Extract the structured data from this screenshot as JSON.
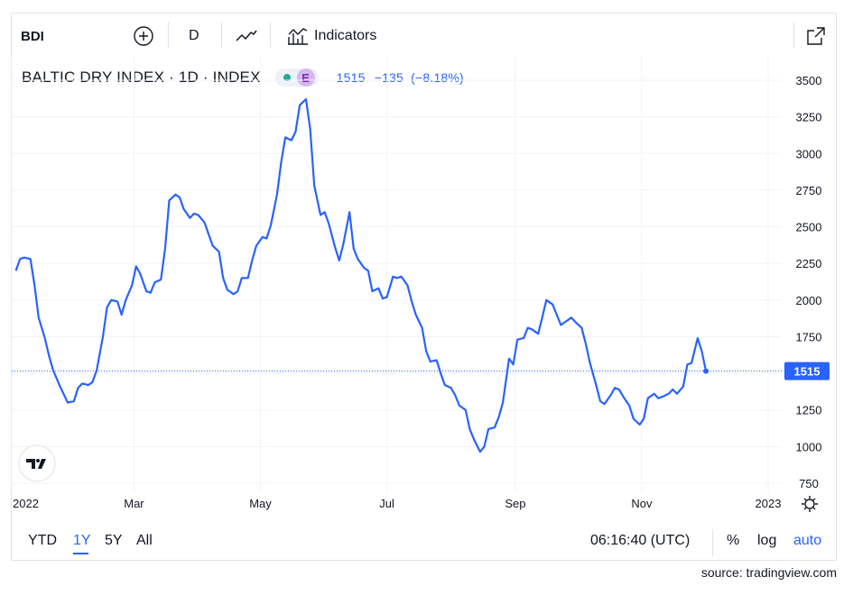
{
  "toolbar": {
    "symbol": "BDI",
    "add_icon": "plus-circle-icon",
    "interval": "D",
    "chart_style_icon": "line-style-icon",
    "indicators_icon": "indicators-icon",
    "indicators_label": "Indicators",
    "fullscreen_icon": "expand-icon"
  },
  "legend": {
    "title": "BALTIC DRY INDEX · 1D · INDEX",
    "status_dot_color": "#22ab94",
    "badge": "E",
    "last": "1515",
    "change": "−135",
    "change_pct": "(−8.18%)"
  },
  "price_label": "1515",
  "bottom_bar": {
    "ranges": [
      "YTD",
      "1Y",
      "5Y",
      "All"
    ],
    "active_range": "1Y",
    "clock": "06:16:40 (UTC)",
    "percent": "%",
    "log": "log",
    "auto": "auto"
  },
  "source": "source: tradingview.com",
  "logo": "TradingView",
  "colors": {
    "line": "#2962ff",
    "price_label_bg": "#2962ff",
    "active": "#2962ff"
  },
  "chart_data": {
    "type": "line",
    "title": "BALTIC DRY INDEX · 1D · INDEX",
    "x_tick_labels": [
      "2022",
      "Mar",
      "May",
      "Jul",
      "Sep",
      "Nov",
      "2023"
    ],
    "y_tick_labels": [
      "750",
      "1000",
      "1250",
      "1500",
      "1750",
      "2000",
      "2250",
      "2500",
      "2750",
      "3000",
      "3250",
      "3500"
    ],
    "ylim": [
      750,
      3550
    ],
    "grid": true,
    "last_value_line": 1515,
    "series": [
      {
        "values": [
          [
            "2022-01-03",
            2200
          ],
          [
            "2022-01-05",
            2280
          ],
          [
            "2022-01-07",
            2290
          ],
          [
            "2022-01-10",
            2280
          ],
          [
            "2022-01-12",
            2100
          ],
          [
            "2022-01-14",
            1880
          ],
          [
            "2022-01-17",
            1740
          ],
          [
            "2022-01-19",
            1620
          ],
          [
            "2022-01-21",
            1520
          ],
          [
            "2022-01-24",
            1420
          ],
          [
            "2022-01-26",
            1360
          ],
          [
            "2022-01-28",
            1300
          ],
          [
            "2022-01-31",
            1310
          ],
          [
            "2022-02-02",
            1400
          ],
          [
            "2022-02-04",
            1430
          ],
          [
            "2022-02-07",
            1420
          ],
          [
            "2022-02-09",
            1440
          ],
          [
            "2022-02-11",
            1520
          ],
          [
            "2022-02-14",
            1750
          ],
          [
            "2022-02-16",
            1950
          ],
          [
            "2022-02-18",
            2000
          ],
          [
            "2022-02-21",
            1990
          ],
          [
            "2022-02-23",
            1900
          ],
          [
            "2022-02-25",
            2000
          ],
          [
            "2022-02-28",
            2100
          ],
          [
            "2022-03-02",
            2230
          ],
          [
            "2022-03-04",
            2180
          ],
          [
            "2022-03-07",
            2060
          ],
          [
            "2022-03-09",
            2050
          ],
          [
            "2022-03-11",
            2120
          ],
          [
            "2022-03-14",
            2140
          ],
          [
            "2022-03-16",
            2350
          ],
          [
            "2022-03-18",
            2680
          ],
          [
            "2022-03-21",
            2720
          ],
          [
            "2022-03-23",
            2700
          ],
          [
            "2022-03-25",
            2620
          ],
          [
            "2022-03-28",
            2560
          ],
          [
            "2022-03-30",
            2590
          ],
          [
            "2022-04-01",
            2580
          ],
          [
            "2022-04-04",
            2530
          ],
          [
            "2022-04-06",
            2450
          ],
          [
            "2022-04-08",
            2370
          ],
          [
            "2022-04-11",
            2330
          ],
          [
            "2022-04-13",
            2150
          ],
          [
            "2022-04-15",
            2070
          ],
          [
            "2022-04-18",
            2040
          ],
          [
            "2022-04-20",
            2060
          ],
          [
            "2022-04-22",
            2150
          ],
          [
            "2022-04-25",
            2150
          ],
          [
            "2022-04-27",
            2270
          ],
          [
            "2022-04-29",
            2370
          ],
          [
            "2022-05-02",
            2430
          ],
          [
            "2022-05-04",
            2420
          ],
          [
            "2022-05-06",
            2510
          ],
          [
            "2022-05-09",
            2720
          ],
          [
            "2022-05-11",
            2940
          ],
          [
            "2022-05-13",
            3110
          ],
          [
            "2022-05-16",
            3090
          ],
          [
            "2022-05-18",
            3150
          ],
          [
            "2022-05-20",
            3330
          ],
          [
            "2022-05-23",
            3370
          ],
          [
            "2022-05-25",
            3170
          ],
          [
            "2022-05-27",
            2780
          ],
          [
            "2022-05-30",
            2580
          ],
          [
            "2022-06-01",
            2600
          ],
          [
            "2022-06-03",
            2520
          ],
          [
            "2022-06-06",
            2360
          ],
          [
            "2022-06-08",
            2270
          ],
          [
            "2022-06-10",
            2380
          ],
          [
            "2022-06-13",
            2600
          ],
          [
            "2022-06-15",
            2350
          ],
          [
            "2022-06-17",
            2280
          ],
          [
            "2022-06-20",
            2220
          ],
          [
            "2022-06-22",
            2200
          ],
          [
            "2022-06-24",
            2060
          ],
          [
            "2022-06-27",
            2080
          ],
          [
            "2022-06-29",
            2010
          ],
          [
            "2022-07-01",
            2020
          ],
          [
            "2022-07-04",
            2160
          ],
          [
            "2022-07-06",
            2150
          ],
          [
            "2022-07-08",
            2160
          ],
          [
            "2022-07-11",
            2100
          ],
          [
            "2022-07-13",
            1990
          ],
          [
            "2022-07-15",
            1900
          ],
          [
            "2022-07-18",
            1810
          ],
          [
            "2022-07-20",
            1650
          ],
          [
            "2022-07-22",
            1580
          ],
          [
            "2022-07-25",
            1590
          ],
          [
            "2022-07-27",
            1500
          ],
          [
            "2022-07-29",
            1420
          ],
          [
            "2022-08-01",
            1400
          ],
          [
            "2022-08-03",
            1350
          ],
          [
            "2022-08-05",
            1280
          ],
          [
            "2022-08-08",
            1250
          ],
          [
            "2022-08-10",
            1120
          ],
          [
            "2022-08-12",
            1050
          ],
          [
            "2022-08-15",
            965
          ],
          [
            "2022-08-17",
            1000
          ],
          [
            "2022-08-19",
            1120
          ],
          [
            "2022-08-22",
            1130
          ],
          [
            "2022-08-24",
            1200
          ],
          [
            "2022-08-26",
            1300
          ],
          [
            "2022-08-29",
            1600
          ],
          [
            "2022-08-31",
            1560
          ],
          [
            "2022-09-02",
            1730
          ],
          [
            "2022-09-05",
            1740
          ],
          [
            "2022-09-07",
            1810
          ],
          [
            "2022-09-09",
            1800
          ],
          [
            "2022-09-12",
            1770
          ],
          [
            "2022-09-14",
            1880
          ],
          [
            "2022-09-16",
            2000
          ],
          [
            "2022-09-19",
            1970
          ],
          [
            "2022-09-21",
            1900
          ],
          [
            "2022-09-23",
            1830
          ],
          [
            "2022-09-26",
            1860
          ],
          [
            "2022-09-28",
            1880
          ],
          [
            "2022-09-30",
            1850
          ],
          [
            "2022-10-03",
            1810
          ],
          [
            "2022-10-05",
            1700
          ],
          [
            "2022-10-07",
            1570
          ],
          [
            "2022-10-10",
            1420
          ],
          [
            "2022-10-12",
            1310
          ],
          [
            "2022-10-14",
            1290
          ],
          [
            "2022-10-17",
            1350
          ],
          [
            "2022-10-19",
            1400
          ],
          [
            "2022-10-21",
            1390
          ],
          [
            "2022-10-24",
            1320
          ],
          [
            "2022-10-26",
            1280
          ],
          [
            "2022-10-28",
            1190
          ],
          [
            "2022-10-31",
            1150
          ],
          [
            "2022-11-02",
            1190
          ],
          [
            "2022-11-04",
            1330
          ],
          [
            "2022-11-07",
            1360
          ],
          [
            "2022-11-09",
            1330
          ],
          [
            "2022-11-11",
            1340
          ],
          [
            "2022-11-14",
            1360
          ],
          [
            "2022-11-16",
            1390
          ],
          [
            "2022-11-18",
            1360
          ],
          [
            "2022-11-21",
            1410
          ],
          [
            "2022-11-23",
            1560
          ],
          [
            "2022-11-25",
            1570
          ],
          [
            "2022-11-28",
            1740
          ],
          [
            "2022-11-30",
            1650
          ],
          [
            "2022-12-02",
            1515
          ]
        ]
      }
    ]
  }
}
